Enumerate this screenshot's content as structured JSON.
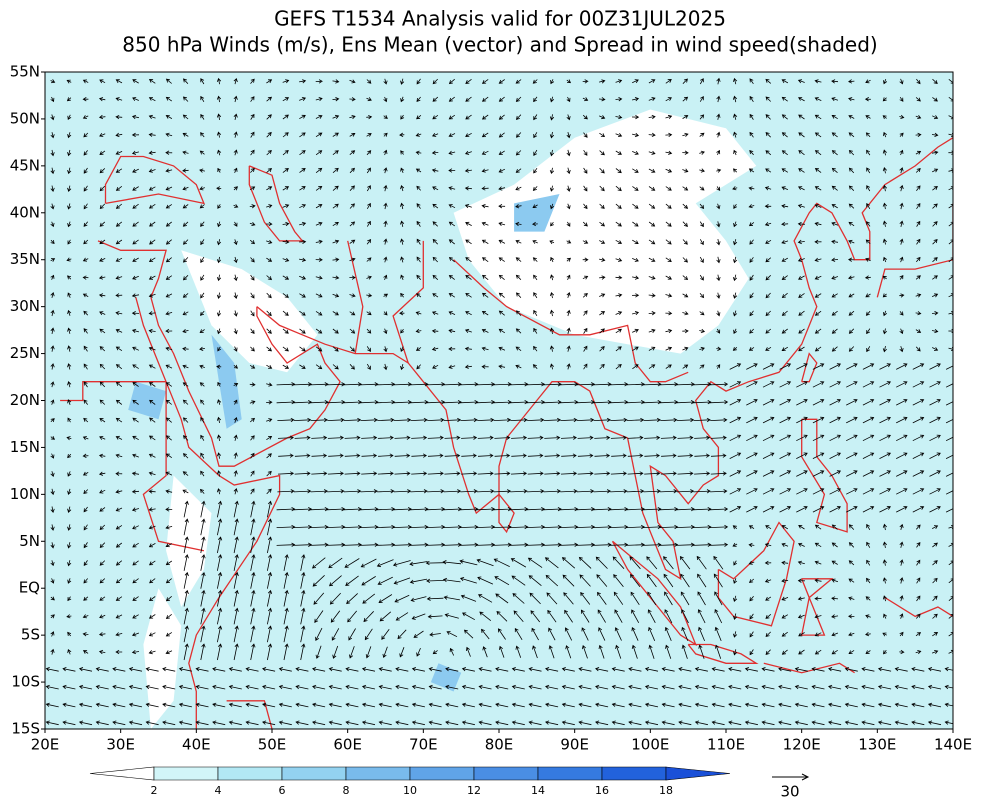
{
  "header": {
    "title": "GEFS T1534 Analysis valid for 00Z31JUL2025",
    "subtitle": "850 hPa Winds (m/s), Ens Mean (vector) and Spread in wind speed(shaded)"
  },
  "map": {
    "lat_labels": [
      "55N",
      "50N",
      "45N",
      "40N",
      "35N",
      "30N",
      "25N",
      "20N",
      "15N",
      "10N",
      "5N",
      "EQ",
      "5S",
      "10S",
      "15S"
    ],
    "lon_labels": [
      "20E",
      "30E",
      "40E",
      "50E",
      "60E",
      "70E",
      "80E",
      "90E",
      "100E",
      "110E",
      "120E",
      "130E",
      "140E"
    ]
  },
  "colorbar": {
    "labels": [
      2,
      4,
      6,
      8,
      10,
      12,
      14,
      16,
      18
    ],
    "colors": [
      "#ffffff",
      "#d2f5f8",
      "#b2e8f4",
      "#93d2f0",
      "#79bbec",
      "#60a4e8",
      "#4a8ee4",
      "#357ae0",
      "#2262dc",
      "#1a50d8"
    ]
  },
  "reference_vector": {
    "label": "30"
  }
}
